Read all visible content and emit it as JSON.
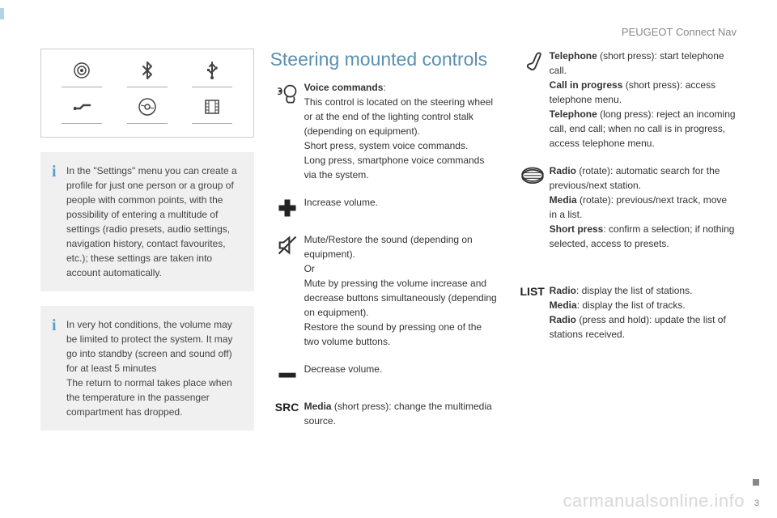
{
  "colors": {
    "accent": "#5a8fb0",
    "info_i": "#5aa0c8",
    "text": "#333333",
    "muted": "#888888",
    "box_bg": "#f0f0f0",
    "border": "#cccccc",
    "watermark": "#d8d8d8"
  },
  "header": {
    "label": "PEUGEOT Connect Nav"
  },
  "icon_panel": {
    "rows": [
      [
        "radio-target-icon",
        "bluetooth-icon",
        "usb-icon"
      ],
      [
        "aux-plug-icon",
        "disc-icon",
        "film-strip-icon"
      ]
    ]
  },
  "info_boxes": [
    {
      "text": "In the \"Settings\" menu you can create a profile for just one person or a group of people with common points, with the possibility of entering a multitude of settings (radio presets, audio settings, navigation history, contact favourites, etc.); these settings are taken into account automatically."
    },
    {
      "text": "In very hot conditions, the volume may be limited to protect the system. It may go into standby (screen and sound off) for at least 5 minutes\nThe return to normal takes place when the temperature in the passenger compartment has dropped."
    }
  ],
  "section_title": "Steering mounted controls",
  "controls_mid": [
    {
      "icon": "voice-head-icon",
      "html": "<b>Voice commands</b>:\nThis control is located on the steering wheel or at the end of the lighting control stalk (depending on equipment).\nShort press, system voice commands.\nLong press, smartphone voice commands via the system."
    },
    {
      "icon": "plus-icon",
      "html": "Increase volume."
    },
    {
      "icon": "mute-icon",
      "html": "Mute/Restore the sound (depending on equipment).\nOr\nMute by pressing the volume increase and decrease buttons simultaneously (depending on equipment).\nRestore the sound by pressing one of the two volume buttons."
    },
    {
      "icon": "minus-icon",
      "html": "Decrease volume."
    },
    {
      "icon_text": "SRC",
      "html": "<b>Media</b> (short press): change the multimedia source."
    }
  ],
  "controls_right": [
    {
      "icon": "phone-handset-icon",
      "html": "<b>Telephone</b> (short press): start telephone call.\n<b>Call in progress</b> (short press): access telephone menu.\n<b>Telephone</b> (long press): reject an incoming call, end call; when no call is in progress, access telephone menu."
    },
    {
      "icon": "rotary-dial-icon",
      "html": "<b>Radio</b> (rotate): automatic search for the previous/next station.\n<b>Media</b> (rotate): previous/next track, move in a list.\n<b>Short press</b>: confirm a selection; if nothing selected, access to presets."
    },
    {
      "icon_text": "LIST",
      "html": "<b>Radio</b>: display the list of stations.\n<b>Media</b>: display the list of tracks.\n<b>Radio</b> (press and hold): update the list of stations received."
    }
  ],
  "footer": {
    "watermark": "carmanualsonline.info",
    "page_number": "3"
  }
}
